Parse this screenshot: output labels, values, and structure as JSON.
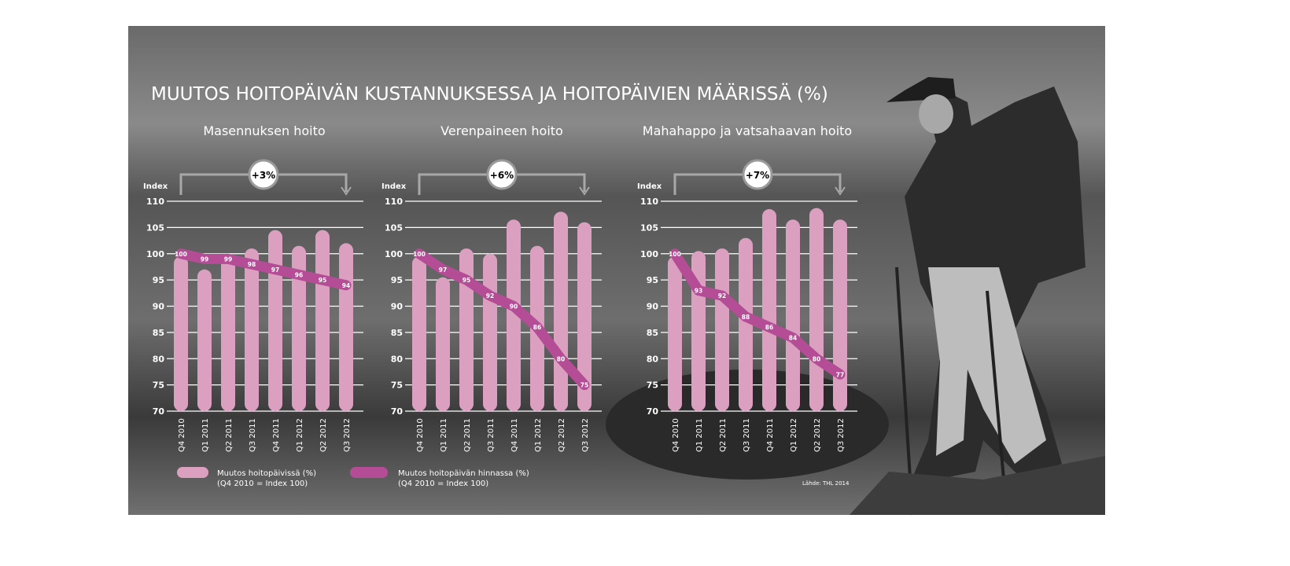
{
  "title": "MUUTOS HOITOPÄIVÄN KUSTANNUKSESSA JA HOITOPÄIVIEN MÄÄRISSÄ (%)",
  "source": "Lähde: THL 2014",
  "colors": {
    "bars": "#dba0c0",
    "line": "#b44d96",
    "text": "#ffffff",
    "bracket": "#a8a8a8"
  },
  "legend": [
    {
      "label": "Muutos hoitopäivissä (%)",
      "sub": "(Q4 2010 = Index 100)"
    },
    {
      "label": "Muutos hoitopäivän hinnassa (%)",
      "sub": "(Q4 2010 = Index 100)"
    }
  ],
  "chart_data": [
    {
      "type": "bar+line",
      "title": "Masennuksen hoito",
      "ylabel": "Index",
      "ylim": [
        70,
        110
      ],
      "yticks": [
        "70",
        "75",
        "80",
        "85",
        "90",
        "95",
        "100",
        "105",
        "110"
      ],
      "change": "+3%",
      "categories": [
        "Q4 2010",
        "Q1 2011",
        "Q2 2011",
        "Q3 2011",
        "Q4 2011",
        "Q1 2012",
        "Q2 2012",
        "Q3 2012"
      ],
      "series": [
        {
          "name": "Muutos hoitopäivissä (%)",
          "type": "bar",
          "values": [
            99.5,
            97,
            100,
            101,
            104.5,
            101.5,
            104.5,
            102
          ]
        },
        {
          "name": "Muutos hoitopäivän hinnassa (%)",
          "type": "line",
          "values": [
            100,
            99,
            99,
            98,
            97,
            96,
            95,
            94
          ]
        }
      ]
    },
    {
      "type": "bar+line",
      "title": "Verenpaineen hoito",
      "ylabel": "Index",
      "ylim": [
        70,
        110
      ],
      "yticks": [
        "70",
        "75",
        "80",
        "85",
        "90",
        "95",
        "100",
        "105",
        "110"
      ],
      "change": "+6%",
      "categories": [
        "Q4 2010",
        "Q1 2011",
        "Q2 2011",
        "Q3 2011",
        "Q4 2011",
        "Q1 2012",
        "Q2 2012",
        "Q3 2012"
      ],
      "series": [
        {
          "name": "Muutos hoitopäivissä (%)",
          "type": "bar",
          "values": [
            99.5,
            95.5,
            101,
            100,
            106.5,
            101.5,
            108,
            106
          ]
        },
        {
          "name": "Muutos hoitopäivän hinnassa (%)",
          "type": "line",
          "values": [
            100,
            97,
            95,
            92,
            90,
            86,
            80,
            75
          ]
        }
      ]
    },
    {
      "type": "bar+line",
      "title": "Mahahappo ja vatsahaavan hoito",
      "ylabel": "Index",
      "ylim": [
        70,
        110
      ],
      "yticks": [
        "70",
        "75",
        "80",
        "85",
        "90",
        "95",
        "100",
        "105",
        "110"
      ],
      "change": "+7%",
      "categories": [
        "Q4 2010",
        "Q1 2011",
        "Q2 2011",
        "Q3 2011",
        "Q4 2011",
        "Q1 2012",
        "Q2 2012",
        "Q3 2012"
      ],
      "series": [
        {
          "name": "Muutos hoitopäivissä (%)",
          "type": "bar",
          "values": [
            99.5,
            100.5,
            101,
            103,
            108.5,
            106.5,
            108.7,
            106.5
          ]
        },
        {
          "name": "Muutos hoitopäivän hinnassa (%)",
          "type": "line",
          "values": [
            100,
            93,
            92,
            88,
            86,
            84,
            80,
            77
          ]
        }
      ]
    }
  ]
}
